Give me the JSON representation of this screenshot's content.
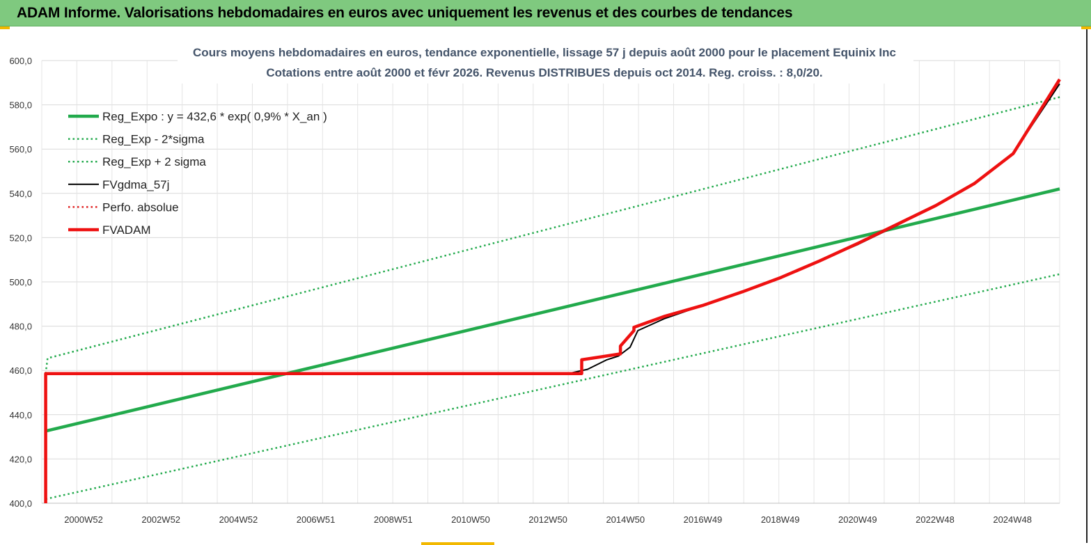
{
  "header": {
    "title": "ADAM Informe. Valorisations hebdomadaires en euros avec uniquement les revenus et des courbes de tendances"
  },
  "chart_data": {
    "type": "line",
    "title_lines": [
      "Cours moyens hebdomadaires en euros, tendance exponentielle, lissage 57 j depuis août 2000 pour le placement Equinix Inc",
      "Cotations entre août 2000 et févr 2026. Revenus DISTRIBUES depuis oct 2014. Reg. croiss. : 8,0/20."
    ],
    "xlabel": "",
    "ylabel": "",
    "ylim": [
      400,
      600
    ],
    "y_ticks": [
      "400,0",
      "420,0",
      "440,0",
      "460,0",
      "480,0",
      "500,0",
      "520,0",
      "540,0",
      "560,0",
      "580,0",
      "600,0"
    ],
    "x_ticks": [
      "2000W52",
      "2002W52",
      "2004W52",
      "2006W51",
      "2008W51",
      "2010W50",
      "2012W50",
      "2014W50",
      "2016W49",
      "2018W49",
      "2020W49",
      "2022W48",
      "2024W48"
    ],
    "xlim": [
      1999.9,
      2026.2
    ],
    "grid": true,
    "legend_position": "top-left",
    "series": [
      {
        "name": "Reg_Expo : y = 432,6 * exp( 0,9% *  X_an )",
        "color": "#22aa4c",
        "style": "solid-thick",
        "x": [
          2000.0,
          2026.2
        ],
        "y": [
          432.6,
          542.0
        ]
      },
      {
        "name": "Reg_Exp - 2*sigma",
        "color": "#22aa4c",
        "style": "dotted",
        "x": [
          2000.0,
          2026.2
        ],
        "y": [
          401.9,
          503.5
        ]
      },
      {
        "name": "Reg_Exp + 2 sigma",
        "color": "#22aa4c",
        "style": "dotted",
        "x": [
          2000.0,
          2000.05,
          2026.2
        ],
        "y": [
          458.6,
          465.5,
          583.5
        ]
      },
      {
        "name": "FVgdma_57j",
        "color": "#000000",
        "style": "solid",
        "x": [
          2000.0,
          2013.5,
          2014.0,
          2014.5,
          2014.8,
          2015.1,
          2015.3,
          2016.0,
          2017.0,
          2018.0,
          2019.0,
          2020.0,
          2021.0,
          2022.0,
          2023.0,
          2024.0,
          2025.0,
          2026.2
        ],
        "y": [
          458.6,
          458.6,
          460.5,
          464.8,
          466.5,
          470.5,
          478.0,
          483.5,
          489.5,
          495.5,
          502.0,
          509.5,
          517.0,
          525.5,
          534.5,
          544.5,
          558.0,
          589.5
        ]
      },
      {
        "name": "Perfo. absolue",
        "color": "#e02020",
        "style": "dotted",
        "x": [],
        "y": []
      },
      {
        "name": "FVADAM",
        "color": "#ee1111",
        "style": "solid-thick",
        "x": [
          2000.0,
          2000.0,
          2013.85,
          2013.85,
          2014.85,
          2014.85,
          2015.2,
          2015.2,
          2016.0,
          2017.0,
          2018.0,
          2019.0,
          2020.0,
          2021.0,
          2022.0,
          2023.0,
          2024.0,
          2025.0,
          2026.2
        ],
        "y": [
          400.0,
          458.6,
          458.6,
          464.8,
          467.5,
          471.0,
          478.0,
          479.5,
          484.5,
          489.5,
          495.5,
          502.0,
          509.5,
          517.5,
          526.0,
          534.5,
          544.5,
          558.0,
          591.5
        ]
      }
    ]
  }
}
